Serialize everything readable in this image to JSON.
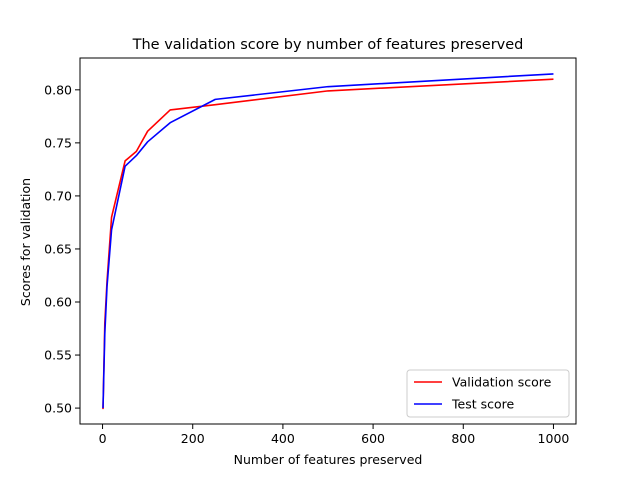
{
  "chart_data": {
    "type": "line",
    "title": "The validation score by number of features preserved",
    "xlabel": "Number of features preserved",
    "ylabel": "Scores for validation",
    "xlim": [
      -50,
      1050
    ],
    "ylim": [
      0.485,
      0.83
    ],
    "xticks": [
      0,
      200,
      400,
      600,
      800,
      1000
    ],
    "yticks": [
      0.5,
      0.55,
      0.6,
      0.65,
      0.7,
      0.75,
      0.8
    ],
    "x_tick_labels": [
      "0",
      "200",
      "400",
      "600",
      "800",
      "1000"
    ],
    "y_tick_labels": [
      "0.50",
      "0.55",
      "0.60",
      "0.65",
      "0.70",
      "0.75",
      "0.80"
    ],
    "grid": false,
    "legend_position": "lower-right",
    "series": [
      {
        "name": "Validation score",
        "color": "#ff0000",
        "x": [
          1,
          5,
          10,
          20,
          50,
          75,
          100,
          150,
          250,
          500,
          1000
        ],
        "y": [
          0.499,
          0.58,
          0.62,
          0.68,
          0.733,
          0.742,
          0.761,
          0.781,
          0.786,
          0.799,
          0.81
        ]
      },
      {
        "name": "Test score",
        "color": "#0000ff",
        "x": [
          1,
          5,
          10,
          20,
          50,
          75,
          100,
          150,
          250,
          500,
          1000
        ],
        "y": [
          0.5,
          0.57,
          0.615,
          0.668,
          0.728,
          0.738,
          0.751,
          0.769,
          0.791,
          0.803,
          0.815
        ]
      }
    ]
  }
}
